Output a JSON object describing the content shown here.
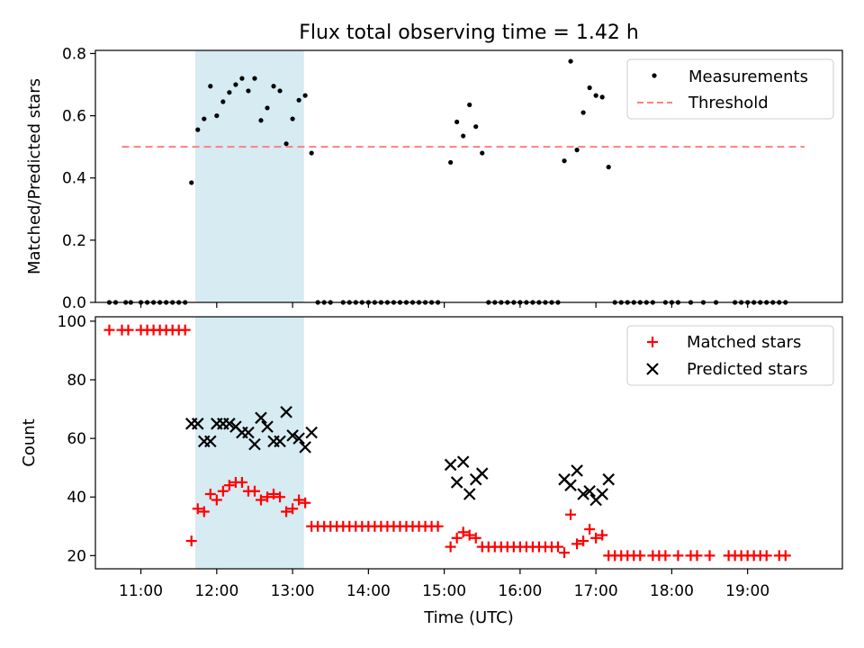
{
  "figure": {
    "title": "Flux total observing time = 1.42 h",
    "xlabel": "Time (UTC)",
    "x_ticks": [
      "11:00",
      "12:00",
      "13:00",
      "14:00",
      "15:00",
      "16:00",
      "17:00",
      "18:00",
      "19:00"
    ]
  },
  "chart_data": [
    {
      "type": "scatter",
      "title": "Flux total observing time = 1.42 h",
      "ylabel": "Matched/Predicted stars",
      "xlim": [
        "10:24",
        "20:15"
      ],
      "ylim": [
        0,
        0.81
      ],
      "y_ticks": [
        "0.0",
        "0.2",
        "0.4",
        "0.6",
        "0.8"
      ],
      "legend_position": "top-right",
      "highlight_span": {
        "start": "11:43",
        "end": "13:09",
        "color": "#add8e6"
      },
      "threshold": {
        "name": "Threshold",
        "value": 0.5,
        "x_start": "10:45",
        "x_end": "19:45",
        "color": "#ff7f7f",
        "style": "dashed"
      },
      "series": [
        {
          "name": "Measurements",
          "color": "#000000",
          "marker": "dot",
          "points": [
            [
              "10:35",
              0
            ],
            [
              "10:40",
              0
            ],
            [
              "10:48",
              0
            ],
            [
              "10:52",
              0
            ],
            [
              "11:00",
              0
            ],
            [
              "11:05",
              0
            ],
            [
              "11:10",
              0
            ],
            [
              "11:15",
              0
            ],
            [
              "11:20",
              0
            ],
            [
              "11:25",
              0
            ],
            [
              "11:30",
              0
            ],
            [
              "11:35",
              0
            ],
            [
              "11:40",
              0.385
            ],
            [
              "11:45",
              0.555
            ],
            [
              "11:50",
              0.59
            ],
            [
              "11:55",
              0.695
            ],
            [
              "12:00",
              0.6
            ],
            [
              "12:05",
              0.645
            ],
            [
              "12:10",
              0.675
            ],
            [
              "12:15",
              0.7
            ],
            [
              "12:20",
              0.72
            ],
            [
              "12:25",
              0.68
            ],
            [
              "12:30",
              0.72
            ],
            [
              "12:35",
              0.585
            ],
            [
              "12:40",
              0.625
            ],
            [
              "12:45",
              0.695
            ],
            [
              "12:50",
              0.68
            ],
            [
              "12:55",
              0.51
            ],
            [
              "13:00",
              0.59
            ],
            [
              "13:05",
              0.65
            ],
            [
              "13:10",
              0.665
            ],
            [
              "13:15",
              0.48
            ],
            [
              "13:20",
              0
            ],
            [
              "13:25",
              0
            ],
            [
              "13:30",
              0
            ],
            [
              "13:40",
              0
            ],
            [
              "13:45",
              0
            ],
            [
              "13:50",
              0
            ],
            [
              "13:55",
              0
            ],
            [
              "14:00",
              0
            ],
            [
              "14:05",
              0
            ],
            [
              "14:10",
              0
            ],
            [
              "14:15",
              0
            ],
            [
              "14:20",
              0
            ],
            [
              "14:25",
              0
            ],
            [
              "14:30",
              0
            ],
            [
              "14:35",
              0
            ],
            [
              "14:40",
              0
            ],
            [
              "14:45",
              0
            ],
            [
              "14:50",
              0
            ],
            [
              "14:55",
              0
            ],
            [
              "15:05",
              0.45
            ],
            [
              "15:10",
              0.58
            ],
            [
              "15:15",
              0.535
            ],
            [
              "15:20",
              0.635
            ],
            [
              "15:25",
              0.565
            ],
            [
              "15:30",
              0.48
            ],
            [
              "15:35",
              0
            ],
            [
              "15:40",
              0
            ],
            [
              "15:45",
              0
            ],
            [
              "15:50",
              0
            ],
            [
              "15:55",
              0
            ],
            [
              "16:00",
              0
            ],
            [
              "16:05",
              0
            ],
            [
              "16:10",
              0
            ],
            [
              "16:15",
              0
            ],
            [
              "16:20",
              0
            ],
            [
              "16:25",
              0
            ],
            [
              "16:30",
              0
            ],
            [
              "16:35",
              0.455
            ],
            [
              "16:40",
              0.775
            ],
            [
              "16:45",
              0.49
            ],
            [
              "16:50",
              0.61
            ],
            [
              "16:55",
              0.69
            ],
            [
              "17:00",
              0.665
            ],
            [
              "17:05",
              0.66
            ],
            [
              "17:10",
              0.435
            ],
            [
              "17:15",
              0
            ],
            [
              "17:20",
              0
            ],
            [
              "17:25",
              0
            ],
            [
              "17:30",
              0
            ],
            [
              "17:35",
              0
            ],
            [
              "17:40",
              0
            ],
            [
              "17:45",
              0
            ],
            [
              "17:55",
              0
            ],
            [
              "18:00",
              0
            ],
            [
              "18:05",
              0
            ],
            [
              "18:15",
              0
            ],
            [
              "18:25",
              0
            ],
            [
              "18:35",
              0
            ],
            [
              "18:50",
              0
            ],
            [
              "18:55",
              0
            ],
            [
              "19:00",
              0
            ],
            [
              "19:05",
              0
            ],
            [
              "19:10",
              0
            ],
            [
              "19:15",
              0
            ],
            [
              "19:20",
              0
            ],
            [
              "19:25",
              0
            ],
            [
              "19:30",
              0
            ]
          ]
        }
      ]
    },
    {
      "type": "scatter",
      "ylabel": "Count",
      "xlabel": "Time (UTC)",
      "xlim": [
        "10:24",
        "20:15"
      ],
      "ylim": [
        15.5,
        101.5
      ],
      "y_ticks": [
        "20",
        "40",
        "60",
        "80",
        "100"
      ],
      "legend_position": "top-right",
      "highlight_span": {
        "start": "11:43",
        "end": "13:09",
        "color": "#add8e6"
      },
      "series": [
        {
          "name": "Matched stars",
          "color": "#ff0000",
          "marker": "plus",
          "points": [
            [
              "10:35",
              97
            ],
            [
              "10:45",
              97
            ],
            [
              "10:50",
              97
            ],
            [
              "11:00",
              97
            ],
            [
              "11:05",
              97
            ],
            [
              "11:10",
              97
            ],
            [
              "11:15",
              97
            ],
            [
              "11:20",
              97
            ],
            [
              "11:25",
              97
            ],
            [
              "11:30",
              97
            ],
            [
              "11:35",
              97
            ],
            [
              "11:40",
              25
            ],
            [
              "11:45",
              36
            ],
            [
              "11:50",
              35
            ],
            [
              "11:55",
              41
            ],
            [
              "12:00",
              39
            ],
            [
              "12:05",
              42
            ],
            [
              "12:10",
              44
            ],
            [
              "12:15",
              45
            ],
            [
              "12:20",
              45
            ],
            [
              "12:25",
              42
            ],
            [
              "12:30",
              42
            ],
            [
              "12:35",
              39
            ],
            [
              "12:40",
              40
            ],
            [
              "12:45",
              41
            ],
            [
              "12:50",
              40
            ],
            [
              "12:55",
              35
            ],
            [
              "13:00",
              36
            ],
            [
              "13:05",
              39
            ],
            [
              "13:10",
              38
            ],
            [
              "13:15",
              30
            ],
            [
              "13:20",
              30
            ],
            [
              "13:25",
              30
            ],
            [
              "13:30",
              30
            ],
            [
              "13:35",
              30
            ],
            [
              "13:40",
              30
            ],
            [
              "13:45",
              30
            ],
            [
              "13:50",
              30
            ],
            [
              "13:55",
              30
            ],
            [
              "14:00",
              30
            ],
            [
              "14:05",
              30
            ],
            [
              "14:10",
              30
            ],
            [
              "14:15",
              30
            ],
            [
              "14:20",
              30
            ],
            [
              "14:25",
              30
            ],
            [
              "14:30",
              30
            ],
            [
              "14:35",
              30
            ],
            [
              "14:40",
              30
            ],
            [
              "14:45",
              30
            ],
            [
              "14:50",
              30
            ],
            [
              "14:55",
              30
            ],
            [
              "15:05",
              23
            ],
            [
              "15:10",
              26
            ],
            [
              "15:15",
              28
            ],
            [
              "15:20",
              27
            ],
            [
              "15:25",
              26
            ],
            [
              "15:30",
              23
            ],
            [
              "15:35",
              23
            ],
            [
              "15:40",
              23
            ],
            [
              "15:45",
              23
            ],
            [
              "15:50",
              23
            ],
            [
              "15:55",
              23
            ],
            [
              "16:00",
              23
            ],
            [
              "16:05",
              23
            ],
            [
              "16:10",
              23
            ],
            [
              "16:15",
              23
            ],
            [
              "16:20",
              23
            ],
            [
              "16:25",
              23
            ],
            [
              "16:30",
              23
            ],
            [
              "16:35",
              21
            ],
            [
              "16:40",
              34
            ],
            [
              "16:45",
              24
            ],
            [
              "16:50",
              25
            ],
            [
              "16:55",
              29
            ],
            [
              "17:00",
              26
            ],
            [
              "17:05",
              27
            ],
            [
              "17:10",
              20
            ],
            [
              "17:15",
              20
            ],
            [
              "17:20",
              20
            ],
            [
              "17:25",
              20
            ],
            [
              "17:30",
              20
            ],
            [
              "17:35",
              20
            ],
            [
              "17:45",
              20
            ],
            [
              "17:50",
              20
            ],
            [
              "17:55",
              20
            ],
            [
              "18:05",
              20
            ],
            [
              "18:15",
              20
            ],
            [
              "18:20",
              20
            ],
            [
              "18:30",
              20
            ],
            [
              "18:45",
              20
            ],
            [
              "18:50",
              20
            ],
            [
              "18:55",
              20
            ],
            [
              "19:00",
              20
            ],
            [
              "19:05",
              20
            ],
            [
              "19:10",
              20
            ],
            [
              "19:15",
              20
            ],
            [
              "19:25",
              20
            ],
            [
              "19:30",
              20
            ]
          ]
        },
        {
          "name": "Predicted stars",
          "color": "#000000",
          "marker": "x",
          "points": [
            [
              "11:40",
              65
            ],
            [
              "11:45",
              65
            ],
            [
              "11:50",
              59
            ],
            [
              "11:55",
              59
            ],
            [
              "12:00",
              65
            ],
            [
              "12:05",
              65
            ],
            [
              "12:10",
              65
            ],
            [
              "12:15",
              64
            ],
            [
              "12:20",
              62
            ],
            [
              "12:25",
              62
            ],
            [
              "12:30",
              58
            ],
            [
              "12:35",
              67
            ],
            [
              "12:40",
              64
            ],
            [
              "12:45",
              59
            ],
            [
              "12:50",
              59
            ],
            [
              "12:55",
              69
            ],
            [
              "13:00",
              61
            ],
            [
              "13:05",
              60
            ],
            [
              "13:10",
              57
            ],
            [
              "13:15",
              62
            ],
            [
              "15:05",
              51
            ],
            [
              "15:10",
              45
            ],
            [
              "15:15",
              52
            ],
            [
              "15:20",
              41
            ],
            [
              "15:25",
              46
            ],
            [
              "15:30",
              48
            ],
            [
              "16:35",
              46
            ],
            [
              "16:40",
              44
            ],
            [
              "16:45",
              49
            ],
            [
              "16:50",
              41
            ],
            [
              "16:55",
              42
            ],
            [
              "17:00",
              39
            ],
            [
              "17:05",
              41
            ],
            [
              "17:10",
              46
            ]
          ]
        }
      ]
    }
  ]
}
